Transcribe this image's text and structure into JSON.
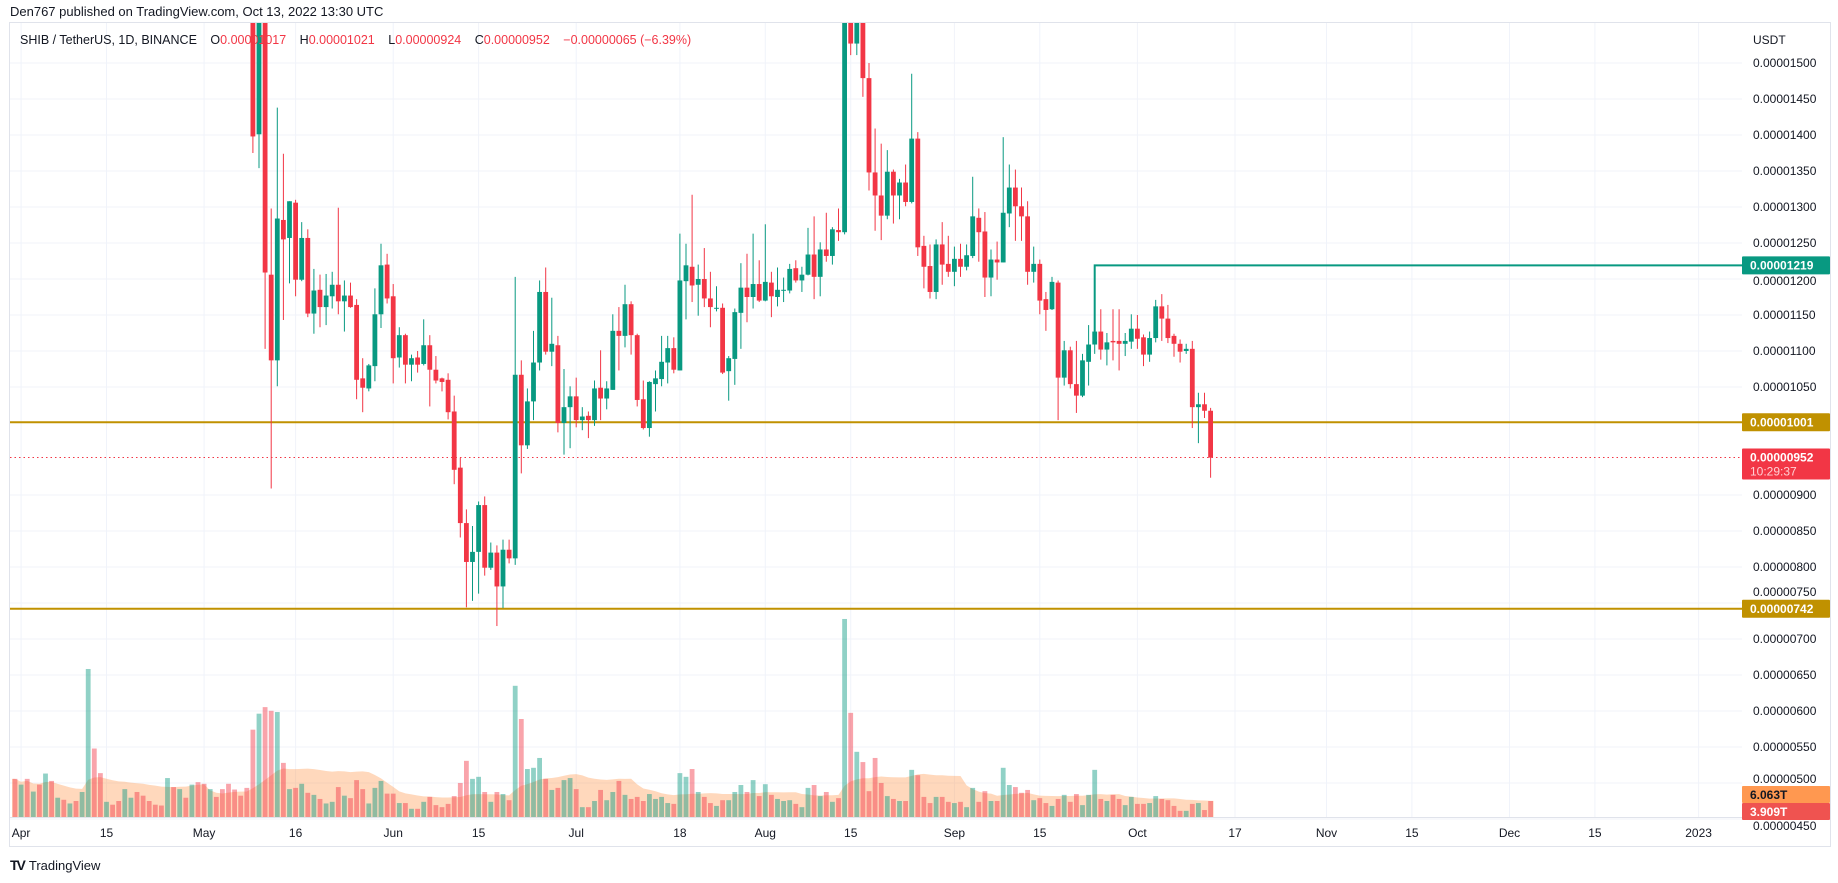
{
  "published": "Den767 published on TradingView.com, Oct 13, 2022 13:30 UTC",
  "header": {
    "symbol": "SHIB / TetherUS, 1D, BINANCE",
    "o_key": "O",
    "open": "0.00001017",
    "h_key": "H",
    "high": "0.00001021",
    "l_key": "L",
    "low": "0.00000924",
    "c_key": "C",
    "close": "0.00000952",
    "change": "−0.00000065 (−6.39%)"
  },
  "footer": {
    "logo": "TV",
    "brand": "TradingView"
  },
  "colors": {
    "up": "#089981",
    "down": "#f23645",
    "level": "#c09100",
    "trend": "#089981",
    "volume_ma": "#ff9850"
  },
  "chart_data": {
    "type": "candlestick",
    "title": "SHIB / TetherUS, 1D, BINANCE",
    "price_unit": "values x 1e-8 USDT",
    "ylabel": "USDT",
    "ylim": [
      450,
      1500
    ],
    "grid": true,
    "candles_start_date": "2022-05-09",
    "ohlc": [
      [
        1690,
        1710,
        1375,
        1398
      ],
      [
        1401,
        1600,
        1354,
        1560
      ],
      [
        1560,
        1580,
        1103,
        1209
      ],
      [
        1206,
        1298,
        909,
        1087
      ],
      [
        1087,
        1438,
        1051,
        1284
      ],
      [
        1282,
        1374,
        1143,
        1255
      ],
      [
        1257,
        1308,
        1194,
        1308
      ],
      [
        1306,
        1310,
        1176,
        1199
      ],
      [
        1199,
        1279,
        1197,
        1257
      ],
      [
        1257,
        1269,
        1147,
        1152
      ],
      [
        1152,
        1214,
        1124,
        1184
      ],
      [
        1185,
        1206,
        1133,
        1161
      ],
      [
        1161,
        1207,
        1136,
        1177
      ],
      [
        1176,
        1210,
        1159,
        1192
      ],
      [
        1192,
        1299,
        1151,
        1169
      ],
      [
        1169,
        1198,
        1127,
        1177
      ],
      [
        1177,
        1195,
        1160,
        1161
      ],
      [
        1164,
        1172,
        1033,
        1060
      ],
      [
        1062,
        1090,
        1015,
        1049
      ],
      [
        1048,
        1082,
        1044,
        1080
      ],
      [
        1079,
        1187,
        1058,
        1151
      ],
      [
        1151,
        1249,
        1132,
        1219
      ],
      [
        1220,
        1235,
        1166,
        1173
      ],
      [
        1176,
        1193,
        1055,
        1090
      ],
      [
        1091,
        1133,
        1077,
        1122
      ],
      [
        1122,
        1124,
        1055,
        1081
      ],
      [
        1081,
        1095,
        1058,
        1090
      ],
      [
        1091,
        1100,
        1070,
        1081
      ],
      [
        1082,
        1144,
        1080,
        1108
      ],
      [
        1108,
        1122,
        1023,
        1074
      ],
      [
        1074,
        1093,
        1055,
        1059
      ],
      [
        1062,
        1063,
        1044,
        1057
      ],
      [
        1060,
        1069,
        1005,
        1015
      ],
      [
        1016,
        1038,
        915,
        935
      ],
      [
        938,
        952,
        841,
        861
      ],
      [
        861,
        880,
        744,
        807
      ],
      [
        807,
        857,
        753,
        821
      ],
      [
        821,
        891,
        763,
        886
      ],
      [
        886,
        898,
        788,
        799
      ],
      [
        799,
        834,
        796,
        820
      ],
      [
        820,
        830,
        718,
        773
      ],
      [
        773,
        838,
        743,
        824
      ],
      [
        824,
        838,
        805,
        812
      ],
      [
        812,
        1203,
        803,
        1067
      ],
      [
        1067,
        1087,
        930,
        969
      ],
      [
        969,
        1048,
        964,
        1030
      ],
      [
        1030,
        1128,
        1004,
        1084
      ],
      [
        1084,
        1198,
        1073,
        1182
      ],
      [
        1182,
        1216,
        1095,
        1099
      ],
      [
        1099,
        1174,
        1079,
        1110
      ],
      [
        1108,
        1121,
        987,
        1000
      ],
      [
        1000,
        1075,
        956,
        1022
      ],
      [
        1022,
        1051,
        965,
        1037
      ],
      [
        1037,
        1063,
        994,
        1004
      ],
      [
        1004,
        1022,
        990,
        1009
      ],
      [
        1010,
        1016,
        979,
        1004
      ],
      [
        1004,
        1059,
        996,
        1048
      ],
      [
        1049,
        1101,
        1004,
        1034
      ],
      [
        1034,
        1058,
        1019,
        1048
      ],
      [
        1046,
        1151,
        1046,
        1128
      ],
      [
        1128,
        1161,
        1073,
        1121
      ],
      [
        1121,
        1192,
        1105,
        1165
      ],
      [
        1165,
        1169,
        1095,
        1122
      ],
      [
        1122,
        1124,
        1023,
        1032
      ],
      [
        1033,
        1059,
        991,
        993
      ],
      [
        993,
        1058,
        981,
        1057
      ],
      [
        1054,
        1073,
        1016,
        1062
      ],
      [
        1061,
        1121,
        1051,
        1085
      ],
      [
        1084,
        1121,
        1055,
        1104
      ],
      [
        1104,
        1119,
        1069,
        1074
      ],
      [
        1073,
        1263,
        1073,
        1198
      ],
      [
        1197,
        1249,
        1144,
        1219
      ],
      [
        1217,
        1317,
        1168,
        1191
      ],
      [
        1192,
        1220,
        1149,
        1200
      ],
      [
        1200,
        1243,
        1161,
        1173
      ],
      [
        1173,
        1210,
        1133,
        1161
      ],
      [
        1159,
        1190,
        1155,
        1160
      ],
      [
        1160,
        1166,
        1068,
        1070
      ],
      [
        1072,
        1093,
        1031,
        1090
      ],
      [
        1089,
        1159,
        1053,
        1154
      ],
      [
        1153,
        1222,
        1103,
        1188
      ],
      [
        1188,
        1235,
        1140,
        1175
      ],
      [
        1175,
        1263,
        1159,
        1193
      ],
      [
        1193,
        1226,
        1168,
        1170
      ],
      [
        1170,
        1276,
        1169,
        1196
      ],
      [
        1195,
        1210,
        1147,
        1176
      ],
      [
        1175,
        1216,
        1162,
        1185
      ],
      [
        1184,
        1202,
        1168,
        1185
      ],
      [
        1184,
        1221,
        1180,
        1214
      ],
      [
        1215,
        1226,
        1195,
        1198
      ],
      [
        1198,
        1217,
        1182,
        1206
      ],
      [
        1206,
        1271,
        1205,
        1234
      ],
      [
        1234,
        1287,
        1172,
        1203
      ],
      [
        1203,
        1251,
        1176,
        1241
      ],
      [
        1241,
        1292,
        1224,
        1232
      ],
      [
        1232,
        1272,
        1220,
        1269
      ],
      [
        1268,
        1298,
        1253,
        1265
      ],
      [
        1265,
        1760,
        1262,
        1700
      ],
      [
        1700,
        1720,
        1511,
        1527
      ],
      [
        1527,
        1610,
        1511,
        1580
      ],
      [
        1580,
        1600,
        1453,
        1479
      ],
      [
        1479,
        1500,
        1323,
        1348
      ],
      [
        1348,
        1409,
        1267,
        1316
      ],
      [
        1316,
        1388,
        1254,
        1288
      ],
      [
        1288,
        1379,
        1283,
        1349
      ],
      [
        1349,
        1352,
        1277,
        1316
      ],
      [
        1316,
        1339,
        1283,
        1334
      ],
      [
        1334,
        1359,
        1301,
        1307
      ],
      [
        1307,
        1485,
        1305,
        1395
      ],
      [
        1395,
        1404,
        1232,
        1244
      ],
      [
        1246,
        1260,
        1187,
        1217
      ],
      [
        1218,
        1248,
        1173,
        1182
      ],
      [
        1182,
        1255,
        1172,
        1248
      ],
      [
        1248,
        1279,
        1192,
        1220
      ],
      [
        1221,
        1260,
        1203,
        1210
      ],
      [
        1210,
        1245,
        1190,
        1228
      ],
      [
        1228,
        1249,
        1203,
        1217
      ],
      [
        1217,
        1248,
        1212,
        1233
      ],
      [
        1232,
        1342,
        1229,
        1287
      ],
      [
        1285,
        1298,
        1224,
        1265
      ],
      [
        1266,
        1293,
        1175,
        1202
      ],
      [
        1202,
        1241,
        1176,
        1227
      ],
      [
        1227,
        1252,
        1199,
        1223
      ],
      [
        1223,
        1397,
        1223,
        1292
      ],
      [
        1291,
        1359,
        1272,
        1327
      ],
      [
        1327,
        1352,
        1253,
        1301
      ],
      [
        1301,
        1327,
        1253,
        1287
      ],
      [
        1287,
        1308,
        1192,
        1210
      ],
      [
        1210,
        1245,
        1195,
        1221
      ],
      [
        1221,
        1227,
        1151,
        1170
      ],
      [
        1172,
        1182,
        1128,
        1157
      ],
      [
        1158,
        1203,
        1157,
        1196
      ],
      [
        1195,
        1198,
        1004,
        1063
      ],
      [
        1063,
        1114,
        1052,
        1101
      ],
      [
        1101,
        1106,
        1048,
        1054
      ],
      [
        1054,
        1114,
        1014,
        1038
      ],
      [
        1038,
        1096,
        1036,
        1087
      ],
      [
        1085,
        1136,
        1052,
        1109
      ],
      [
        1109,
        1129,
        1096,
        1127
      ],
      [
        1127,
        1158,
        1088,
        1102
      ],
      [
        1102,
        1125,
        1080,
        1112
      ],
      [
        1114,
        1158,
        1087,
        1112
      ],
      [
        1114,
        1158,
        1073,
        1110
      ],
      [
        1110,
        1125,
        1093,
        1114
      ],
      [
        1113,
        1151,
        1103,
        1131
      ],
      [
        1131,
        1150,
        1103,
        1117
      ],
      [
        1119,
        1123,
        1079,
        1095
      ],
      [
        1095,
        1127,
        1085,
        1118
      ],
      [
        1118,
        1171,
        1112,
        1162
      ],
      [
        1162,
        1179,
        1114,
        1145
      ],
      [
        1145,
        1164,
        1111,
        1118
      ],
      [
        1121,
        1124,
        1092,
        1110
      ],
      [
        1110,
        1116,
        1084,
        1099
      ],
      [
        1100,
        1110,
        1096,
        1103
      ],
      [
        1103,
        1114,
        993,
        1022
      ],
      [
        1022,
        1042,
        972,
        1026
      ],
      [
        1026,
        1042,
        1007,
        1017
      ],
      [
        1017,
        1021,
        924,
        952
      ]
    ],
    "volume_start_date": "2022-03-31",
    "volume_unit": "T",
    "volume": [
      9.3,
      7.9,
      9.3,
      6.2,
      7.9,
      10.6,
      8.8,
      4.7,
      4.2,
      3.3,
      3.9,
      6.1,
      36.1,
      16.7,
      10.7,
      3.7,
      3.0,
      3.9,
      6.8,
      4.7,
      6.1,
      5.2,
      3.9,
      3.0,
      2.8,
      9.5,
      7.3,
      6.8,
      4.7,
      7.9,
      8.5,
      8.1,
      6.8,
      4.9,
      6.8,
      8.1,
      6.7,
      5.2,
      7.1,
      21.3,
      25.2,
      26.8,
      25.9,
      25.6,
      13.2,
      6.8,
      7.1,
      8.1,
      5.9,
      5.4,
      4.4,
      3.3,
      3.7,
      7.3,
      5.2,
      4.6,
      9.0,
      6.8,
      3.3,
      7.1,
      8.8,
      5.7,
      5.7,
      3.4,
      3.4,
      2.0,
      2.0,
      3.7,
      4.9,
      2.9,
      2.4,
      3.2,
      5.1,
      8.3,
      13.7,
      9.3,
      9.8,
      6.1,
      3.7,
      6.1,
      5.6,
      4.1,
      32.0,
      23.9,
      11.7,
      12.0,
      14.4,
      9.3,
      6.6,
      7.1,
      9.0,
      9.5,
      6.8,
      2.4,
      2.4,
      3.9,
      6.6,
      4.1,
      6.1,
      8.8,
      5.4,
      4.4,
      4.9,
      3.9,
      5.6,
      4.4,
      4.9,
      3.4,
      3.2,
      10.7,
      9.8,
      11.7,
      6.1,
      4.9,
      3.4,
      2.7,
      4.1,
      4.1,
      6.1,
      7.8,
      6.1,
      9.0,
      5.1,
      8.0,
      5.4,
      4.4,
      3.9,
      4.1,
      3.2,
      2.4,
      7.1,
      7.8,
      5.1,
      6.1,
      3.7,
      4.6,
      48.3,
      25.4,
      15.9,
      13.4,
      6.3,
      14.4,
      8.3,
      5.1,
      4.4,
      3.9,
      3.9,
      11.5,
      10.2,
      4.9,
      3.4,
      4.9,
      4.9,
      3.7,
      3.4,
      3.7,
      2.4,
      7.1,
      3.7,
      6.3,
      3.9,
      3.9,
      12.0,
      7.8,
      7.3,
      5.9,
      6.6,
      4.1,
      4.6,
      3.4,
      2.7,
      4.4,
      5.4,
      3.7,
      5.6,
      2.9,
      5.4,
      11.5,
      4.4,
      3.9,
      5.4,
      4.4,
      2.9,
      4.9,
      3.2,
      3.2,
      3.4,
      5.1,
      4.4,
      4.1,
      2.7,
      1.5,
      1.5,
      3.2,
      3.4,
      1.7,
      3.909
    ],
    "volume_pre_candle_direction": "dudududududuuddudduudddddudududdudddddd",
    "price_ticks": [
      "0.00001500",
      "0.00001450",
      "0.00001400",
      "0.00001350",
      "0.00001300",
      "0.00001250",
      "0.00001200",
      "0.00001150",
      "0.00001100",
      "0.00001050",
      "0.00000900",
      "0.00000850",
      "0.00000800",
      "0.00000750",
      "0.00000700",
      "0.00000650",
      "0.00000600",
      "0.00000550",
      "0.00000500",
      "0.00000450"
    ],
    "time_ticks": [
      {
        "label": "Apr",
        "date": "2022-04-01"
      },
      {
        "label": "15",
        "date": "2022-04-15"
      },
      {
        "label": "May",
        "date": "2022-05-01"
      },
      {
        "label": "16",
        "date": "2022-05-16"
      },
      {
        "label": "Jun",
        "date": "2022-06-01"
      },
      {
        "label": "15",
        "date": "2022-06-15"
      },
      {
        "label": "Jul",
        "date": "2022-07-01"
      },
      {
        "label": "18",
        "date": "2022-07-18"
      },
      {
        "label": "Aug",
        "date": "2022-08-01"
      },
      {
        "label": "15",
        "date": "2022-08-15"
      },
      {
        "label": "Sep",
        "date": "2022-09-01"
      },
      {
        "label": "15",
        "date": "2022-09-15"
      },
      {
        "label": "Oct",
        "date": "2022-10-01"
      },
      {
        "label": "17",
        "date": "2022-10-17"
      },
      {
        "label": "Nov",
        "date": "2022-11-01"
      },
      {
        "label": "15",
        "date": "2022-11-15"
      },
      {
        "label": "Dec",
        "date": "2022-12-01"
      },
      {
        "label": "15",
        "date": "2022-12-15"
      },
      {
        "label": "2023",
        "date": "2023-01-01"
      }
    ],
    "horizontal_levels": [
      {
        "price": 1001,
        "label": "0.00001001",
        "style": "solid"
      },
      {
        "price": 742,
        "label": "0.00000742",
        "style": "solid"
      }
    ],
    "trend_line": {
      "price": 1219,
      "label": "0.00001219",
      "start_date": "2022-09-24",
      "anchor_price": 1127
    },
    "last_price": {
      "price": 952,
      "label": "0.00000952",
      "countdown": "10:29:37"
    },
    "volume_labels": {
      "ma": "6.063T",
      "last": "3.909T"
    }
  }
}
